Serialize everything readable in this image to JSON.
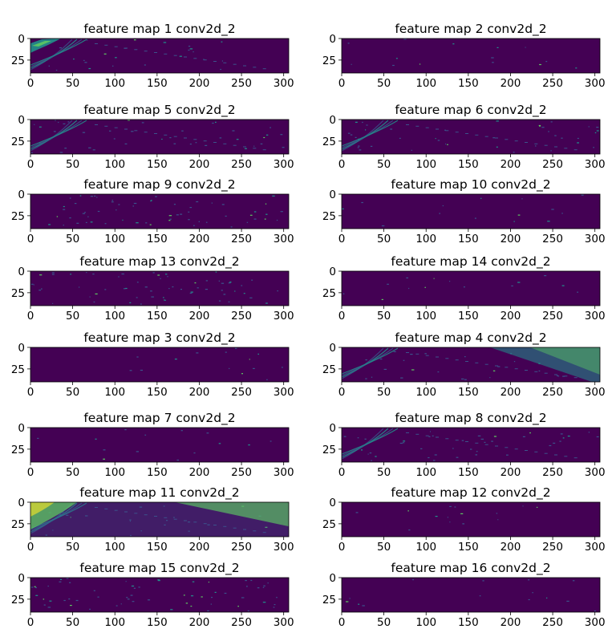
{
  "figure": {
    "background": "#ffffff",
    "colormap": [
      "#440154",
      "#3b528b",
      "#21918c",
      "#5ec962",
      "#fde725"
    ]
  },
  "chart_data": [
    {
      "type": "heatmap",
      "title": "feature map 1 conv2d_2",
      "x_ticks": [
        "0",
        "50",
        "100",
        "150",
        "200",
        "250",
        "300"
      ],
      "y_ticks": [
        "0",
        "25"
      ],
      "xlim": [
        0,
        306
      ],
      "ylim": [
        40,
        0
      ],
      "pattern": "hotspot-left"
    },
    {
      "type": "heatmap",
      "title": "feature map 2 conv2d_2",
      "x_ticks": [
        "0",
        "50",
        "100",
        "150",
        "200",
        "250",
        "300"
      ],
      "y_ticks": [
        "0",
        "25"
      ],
      "xlim": [
        0,
        306
      ],
      "ylim": [
        40,
        0
      ],
      "pattern": "sparse"
    },
    {
      "type": "heatmap",
      "title": "feature map 5 conv2d_2",
      "x_ticks": [
        "0",
        "50",
        "100",
        "150",
        "200",
        "250",
        "300"
      ],
      "y_ticks": [
        "0",
        "25"
      ],
      "xlim": [
        0,
        306
      ],
      "ylim": [
        40,
        0
      ],
      "pattern": "streaks"
    },
    {
      "type": "heatmap",
      "title": "feature map 6 conv2d_2",
      "x_ticks": [
        "0",
        "50",
        "100",
        "150",
        "200",
        "250",
        "300"
      ],
      "y_ticks": [
        "0",
        "25"
      ],
      "xlim": [
        0,
        306
      ],
      "ylim": [
        40,
        0
      ],
      "pattern": "streaks"
    },
    {
      "type": "heatmap",
      "title": "feature map 9 conv2d_2",
      "x_ticks": [
        "0",
        "50",
        "100",
        "150",
        "200",
        "250",
        "300"
      ],
      "y_ticks": [
        "0",
        "25"
      ],
      "xlim": [
        0,
        306
      ],
      "ylim": [
        40,
        0
      ],
      "pattern": "speckle"
    },
    {
      "type": "heatmap",
      "title": "feature map 10 conv2d_2",
      "x_ticks": [
        "0",
        "50",
        "100",
        "150",
        "200",
        "250",
        "300"
      ],
      "y_ticks": [
        "0",
        "25"
      ],
      "xlim": [
        0,
        306
      ],
      "ylim": [
        40,
        0
      ],
      "pattern": "sparse"
    },
    {
      "type": "heatmap",
      "title": "feature map 13 conv2d_2",
      "x_ticks": [
        "0",
        "50",
        "100",
        "150",
        "200",
        "250",
        "300"
      ],
      "y_ticks": [
        "0",
        "25"
      ],
      "xlim": [
        0,
        306
      ],
      "ylim": [
        40,
        0
      ],
      "pattern": "speckle"
    },
    {
      "type": "heatmap",
      "title": "feature map 14 conv2d_2",
      "x_ticks": [
        "0",
        "50",
        "100",
        "150",
        "200",
        "250",
        "300"
      ],
      "y_ticks": [
        "0",
        "25"
      ],
      "xlim": [
        0,
        306
      ],
      "ylim": [
        40,
        0
      ],
      "pattern": "sparse"
    },
    {
      "type": "heatmap",
      "title": "feature map 3 conv2d_2",
      "x_ticks": [
        "0",
        "50",
        "100",
        "150",
        "200",
        "250",
        "300"
      ],
      "y_ticks": [
        "0",
        "25"
      ],
      "xlim": [
        0,
        306
      ],
      "ylim": [
        40,
        0
      ],
      "pattern": "sparse"
    },
    {
      "type": "heatmap",
      "title": "feature map 4 conv2d_2",
      "x_ticks": [
        "0",
        "50",
        "100",
        "150",
        "200",
        "250",
        "300"
      ],
      "y_ticks": [
        "0",
        "25"
      ],
      "xlim": [
        0,
        306
      ],
      "ylim": [
        40,
        0
      ],
      "pattern": "diagonal-band"
    },
    {
      "type": "heatmap",
      "title": "feature map 7 conv2d_2",
      "x_ticks": [
        "0",
        "50",
        "100",
        "150",
        "200",
        "250",
        "300"
      ],
      "y_ticks": [
        "0",
        "25"
      ],
      "xlim": [
        0,
        306
      ],
      "ylim": [
        40,
        0
      ],
      "pattern": "sparse"
    },
    {
      "type": "heatmap",
      "title": "feature map 8 conv2d_2",
      "x_ticks": [
        "0",
        "50",
        "100",
        "150",
        "200",
        "250",
        "300"
      ],
      "y_ticks": [
        "0",
        "25"
      ],
      "xlim": [
        0,
        306
      ],
      "ylim": [
        40,
        0
      ],
      "pattern": "streaks"
    },
    {
      "type": "heatmap",
      "title": "feature map 11 conv2d_2",
      "x_ticks": [
        "0",
        "50",
        "100",
        "150",
        "200",
        "250",
        "300"
      ],
      "y_ticks": [
        "0",
        "25"
      ],
      "xlim": [
        0,
        306
      ],
      "ylim": [
        40,
        0
      ],
      "pattern": "bright-both"
    },
    {
      "type": "heatmap",
      "title": "feature map 12 conv2d_2",
      "x_ticks": [
        "0",
        "50",
        "100",
        "150",
        "200",
        "250",
        "300"
      ],
      "y_ticks": [
        "0",
        "25"
      ],
      "xlim": [
        0,
        306
      ],
      "ylim": [
        40,
        0
      ],
      "pattern": "sparse"
    },
    {
      "type": "heatmap",
      "title": "feature map 15 conv2d_2",
      "x_ticks": [
        "0",
        "50",
        "100",
        "150",
        "200",
        "250",
        "300"
      ],
      "y_ticks": [
        "0",
        "25"
      ],
      "xlim": [
        0,
        306
      ],
      "ylim": [
        40,
        0
      ],
      "pattern": "speckle"
    },
    {
      "type": "heatmap",
      "title": "feature map 16 conv2d_2",
      "x_ticks": [
        "0",
        "50",
        "100",
        "150",
        "200",
        "250",
        "300"
      ],
      "y_ticks": [
        "0",
        "25"
      ],
      "xlim": [
        0,
        306
      ],
      "ylim": [
        40,
        0
      ],
      "pattern": "sparse"
    }
  ]
}
